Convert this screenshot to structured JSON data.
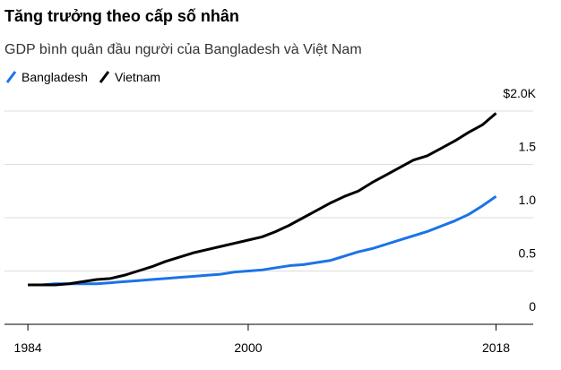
{
  "chart_data": {
    "type": "line",
    "title": "Tăng trưởng theo cấp số nhân",
    "subtitle": "GDP bình quân đầu người của Bangladesh và Việt Nam",
    "x": [
      1984,
      1985,
      1986,
      1987,
      1988,
      1989,
      1990,
      1991,
      1992,
      1993,
      1994,
      1995,
      1996,
      1997,
      1998,
      1999,
      2000,
      2001,
      2002,
      2003,
      2004,
      2005,
      2006,
      2007,
      2008,
      2009,
      2010,
      2011,
      2012,
      2013,
      2014,
      2015,
      2016,
      2017,
      2018
    ],
    "series": [
      {
        "name": "Bangladesh",
        "color": "#1a73e8",
        "values": [
          0.37,
          0.37,
          0.38,
          0.38,
          0.38,
          0.38,
          0.39,
          0.4,
          0.41,
          0.42,
          0.43,
          0.44,
          0.45,
          0.46,
          0.47,
          0.49,
          0.5,
          0.51,
          0.53,
          0.55,
          0.56,
          0.58,
          0.6,
          0.64,
          0.68,
          0.71,
          0.75,
          0.79,
          0.83,
          0.87,
          0.92,
          0.97,
          1.03,
          1.11,
          1.2
        ]
      },
      {
        "name": "Vietnam",
        "color": "#000000",
        "values": [
          0.37,
          0.37,
          0.37,
          0.38,
          0.4,
          0.42,
          0.43,
          0.46,
          0.5,
          0.54,
          0.59,
          0.63,
          0.67,
          0.7,
          0.73,
          0.76,
          0.79,
          0.82,
          0.87,
          0.93,
          1.0,
          1.07,
          1.14,
          1.2,
          1.25,
          1.33,
          1.4,
          1.47,
          1.54,
          1.58,
          1.65,
          1.72,
          1.8,
          1.87,
          1.98
        ]
      }
    ],
    "xlim": [
      1982.3,
      2020.7
    ],
    "xticks": [
      1984,
      2000,
      2018
    ],
    "ylim": [
      0,
      2.0
    ],
    "yticks": [
      0,
      0.5,
      {
        "value": 1,
        "label": "1.0"
      },
      1.5,
      {
        "value": 2,
        "label": "$2.0K"
      }
    ],
    "grid": true,
    "legend": "top-left"
  }
}
